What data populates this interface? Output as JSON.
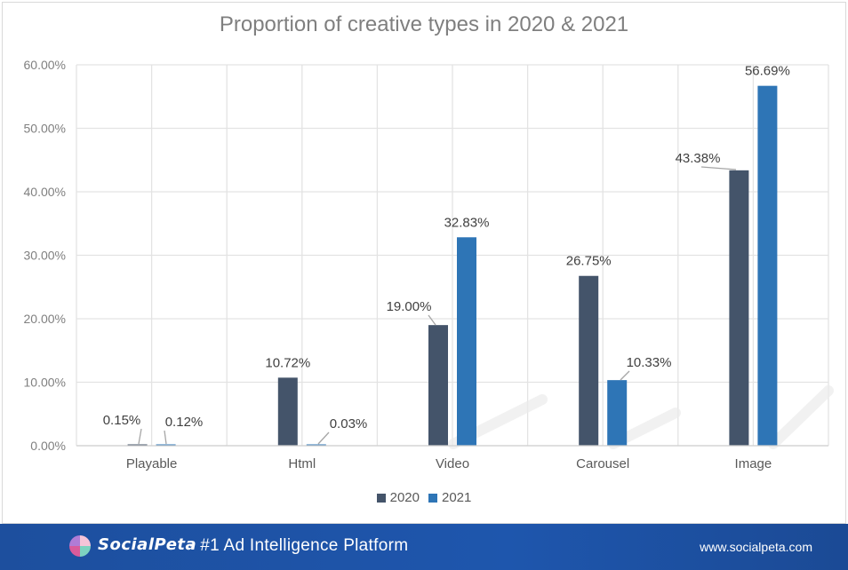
{
  "chart_data": {
    "type": "bar",
    "title": "Proportion of creative types in 2020 & 2021",
    "categories": [
      "Playable",
      "Html",
      "Video",
      "Carousel",
      "Image"
    ],
    "series": [
      {
        "name": "2020",
        "values": [
          0.15,
          10.72,
          19.0,
          26.75,
          43.38
        ],
        "labels": [
          "0.15%",
          "10.72%",
          "19.00%",
          "26.75%",
          "43.38%"
        ],
        "color": "#44546a"
      },
      {
        "name": "2021",
        "values": [
          0.12,
          0.03,
          32.83,
          10.33,
          56.69
        ],
        "labels": [
          "0.12%",
          "0.03%",
          "32.83%",
          "10.33%",
          "56.69%"
        ],
        "color": "#2e75b6"
      }
    ],
    "yticks": [
      "0.00%",
      "10.00%",
      "20.00%",
      "30.00%",
      "40.00%",
      "50.00%",
      "60.00%"
    ],
    "ylim": [
      0,
      60
    ],
    "grid": true,
    "legend_position": "bottom"
  },
  "footer": {
    "brand": "SocialPeta",
    "tagline": "- #1 Ad Intelligence Platform",
    "website": "www.socialpeta.com"
  }
}
